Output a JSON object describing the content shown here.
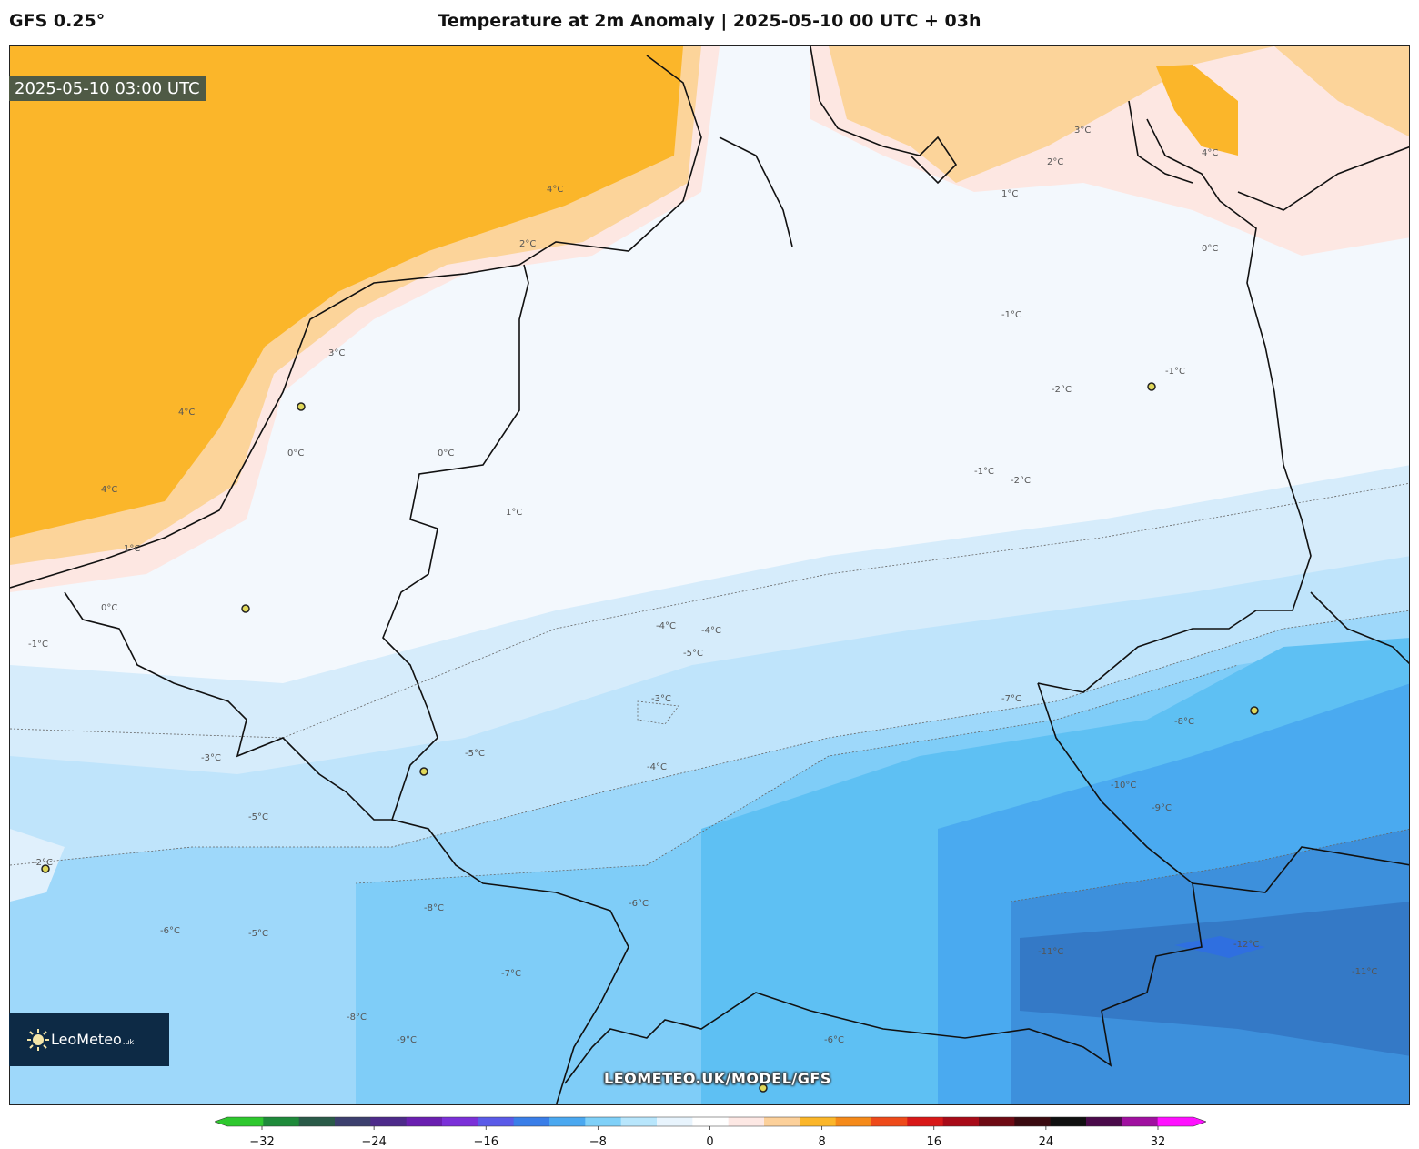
{
  "header": {
    "model": "GFS 0.25°",
    "title": "Temperature at 2m Anomaly | 2025-05-10 00 UTC + 03h"
  },
  "map": {
    "valid_time": "2025-05-10 03:00 UTC",
    "watermark": "LEOMETEO.UK/MODEL/GFS",
    "contour_labels": [
      "4°C",
      "4°C",
      "4°C",
      "4°C",
      "3°C",
      "3°C",
      "2°C",
      "2°C",
      "1°C",
      "1°C",
      "1°C",
      "0°C",
      "0°C",
      "0°C",
      "0°C",
      "-1°C",
      "-1°C",
      "-1°C",
      "-1°C",
      "-2°C",
      "-2°C",
      "-2°C",
      "-3°C",
      "-3°C",
      "-4°C",
      "-4°C",
      "-4°C",
      "-5°C",
      "-5°C",
      "-5°C",
      "-5°C",
      "-6°C",
      "-6°C",
      "-6°C",
      "-7°C",
      "-7°C",
      "-8°C",
      "-8°C",
      "-8°C",
      "-9°C",
      "-9°C",
      "-10°C",
      "-11°C",
      "-11°C",
      "-12°C"
    ],
    "city_markers": 8
  },
  "logo": {
    "name": "LeoMeteo",
    "suffix": ".uk"
  },
  "colorbar": {
    "ticks": [
      "−32",
      "−24",
      "−16",
      "−8",
      "0",
      "8",
      "16",
      "24",
      "32"
    ],
    "min": -32,
    "max": 32,
    "colors": [
      "#2ec82e",
      "#1e8a3a",
      "#2a5a48",
      "#3c3f6e",
      "#4d2a8a",
      "#6a1fb0",
      "#7b30d8",
      "#5a5ae8",
      "#3a7ee8",
      "#4aa8f0",
      "#7fd0f8",
      "#b8e6fc",
      "#e8f4fd",
      "#ffffff",
      "#fde8e4",
      "#fcd09a",
      "#fbb62a",
      "#f58a1a",
      "#ee4a1a",
      "#d81818",
      "#a80a18",
      "#6e0a14",
      "#3a0a10",
      "#101010",
      "#4a0a4a",
      "#a010a0",
      "#ff10ff"
    ]
  }
}
